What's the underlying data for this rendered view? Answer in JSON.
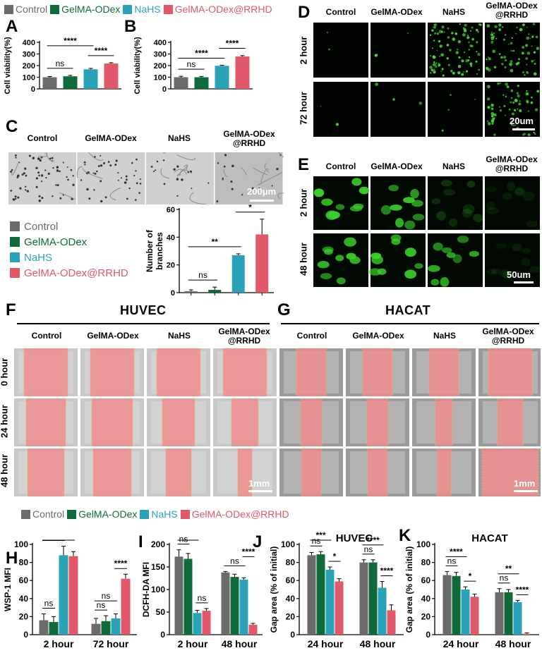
{
  "colors": {
    "control": "#6b6b6b",
    "gelma_odex": "#0f6b3a",
    "nahs": "#2aa3b8",
    "rrhd": "#e0586a"
  },
  "legend_top": [
    "Control",
    "GelMA-ODex",
    "NaHS",
    "GelMA-ODex@RRHD"
  ],
  "legend_mid": [
    "Control",
    "GelMA-ODex",
    "NaHS",
    "GelMA-ODex@RRHD"
  ],
  "legend_bottom": [
    "Control",
    "GelMA-ODex",
    "NaHS",
    "GelMA-ODex@RRHD"
  ],
  "panel_letters": {
    "A": "A",
    "B": "B",
    "C": "C",
    "D": "D",
    "E": "E",
    "F": "F",
    "G": "G",
    "H": "H",
    "I": "I",
    "J": "J",
    "K": "K"
  },
  "panel_c": {
    "headers": [
      "Control",
      "GelMA-ODex",
      "NaHS",
      "GelMA-ODex\n@RRHD"
    ],
    "scale": "200μm"
  },
  "panel_d": {
    "headers": [
      "Control",
      "GelMA-ODex",
      "NaHS",
      "GelMA-ODex\n@RRHD"
    ],
    "rows": [
      "2 hour",
      "72 hour"
    ],
    "scale": "20um"
  },
  "panel_e": {
    "headers": [
      "Control",
      "GelMA-ODex",
      "NaHS",
      "GelMA-ODex\n@RRHD"
    ],
    "rows": [
      "2 hour",
      "48 hour"
    ],
    "scale": "50um"
  },
  "panel_f": {
    "title": "HUVEC",
    "headers": [
      "Control",
      "GelMA-ODex",
      "NaHS",
      "GelMA-ODex\n@RRHD"
    ],
    "rows": [
      "0 hour",
      "24 hour",
      "48 hour"
    ],
    "scale": "1mm"
  },
  "panel_g": {
    "title": "HACAT",
    "headers": [
      "Control",
      "GelMA-ODex",
      "NaHS",
      "GelMA-ODex\n@RRHD"
    ],
    "scale": "1mm"
  },
  "chart_data": [
    {
      "id": "A",
      "type": "bar",
      "ylabel": "Cell viability(%)",
      "yticks": [
        0,
        100,
        200,
        300,
        400
      ],
      "ylim": [
        0,
        400
      ],
      "values": [
        100,
        108,
        168,
        218
      ],
      "errors": [
        6,
        8,
        8,
        7
      ],
      "sig": [
        {
          "a": 0,
          "b": 1,
          "label": "ns"
        },
        {
          "a": 2,
          "b": 3,
          "label": "****"
        },
        {
          "a": 0,
          "b": 2,
          "label": "****"
        }
      ]
    },
    {
      "id": "B",
      "type": "bar",
      "ylabel": "Cell viability(%)",
      "yticks": [
        0,
        100,
        200,
        300,
        400
      ],
      "ylim": [
        0,
        400
      ],
      "values": [
        100,
        100,
        198,
        278
      ],
      "errors": [
        8,
        7,
        5,
        8
      ],
      "sig": [
        {
          "a": 0,
          "b": 1,
          "label": "ns"
        },
        {
          "a": 0,
          "b": 2,
          "label": "****"
        },
        {
          "a": 2,
          "b": 3,
          "label": "****"
        }
      ]
    },
    {
      "id": "C",
      "type": "bar",
      "ylabel": "Number of branches",
      "yticks": [
        0,
        20,
        40,
        60
      ],
      "ylim": [
        0,
        60
      ],
      "values": [
        1,
        2,
        27,
        42
      ],
      "errors": [
        1,
        2,
        1,
        11
      ],
      "sig": [
        {
          "a": 0,
          "b": 1,
          "label": "ns"
        },
        {
          "a": 0,
          "b": 2,
          "label": "**"
        },
        {
          "a": 2,
          "b": 3,
          "label": "*"
        }
      ]
    },
    {
      "id": "H",
      "type": "bar",
      "ylabel": "WSP-1 MFI",
      "categories": [
        "2 hour",
        "72 hour"
      ],
      "yticks": [
        0,
        20,
        40,
        60,
        80,
        100
      ],
      "ylim": [
        0,
        100
      ],
      "series": [
        {
          "name": "Control",
          "values": [
            16,
            12
          ],
          "errors": [
            7,
            6
          ]
        },
        {
          "name": "GelMA-ODex",
          "values": [
            14,
            15
          ],
          "errors": [
            6,
            6
          ]
        },
        {
          "name": "NaHS",
          "values": [
            88,
            18
          ],
          "errors": [
            10,
            5
          ]
        },
        {
          "name": "GelMA-ODex@RRHD",
          "values": [
            87,
            62
          ],
          "errors": [
            5,
            5
          ]
        }
      ],
      "sig": [
        {
          "g": 0,
          "a": 0,
          "b": 1,
          "label": "ns"
        },
        {
          "g": 0,
          "a": 0,
          "b": 2,
          "label": "****"
        },
        {
          "g": 0,
          "a": 0,
          "b": 3,
          "label": "****"
        },
        {
          "g": 1,
          "a": 0,
          "b": 1,
          "label": "ns"
        },
        {
          "g": 1,
          "a": 0,
          "b": 2,
          "label": "ns"
        },
        {
          "g": 1,
          "a": 2,
          "b": 3,
          "label": "****"
        }
      ]
    },
    {
      "id": "I",
      "type": "bar",
      "ylabel": "DCFH-DA MFI",
      "categories": [
        "2 hour",
        "48 hour"
      ],
      "yticks": [
        0,
        50,
        100,
        150,
        200
      ],
      "ylim": [
        0,
        200
      ],
      "series": [
        {
          "name": "Control",
          "values": [
            173,
            138
          ],
          "errors": [
            15,
            2
          ]
        },
        {
          "name": "GelMA-ODex",
          "values": [
            168,
            128
          ],
          "errors": [
            12,
            6
          ]
        },
        {
          "name": "NaHS",
          "values": [
            48,
            122
          ],
          "errors": [
            6,
            4
          ]
        },
        {
          "name": "GelMA-ODex@RRHD",
          "values": [
            53,
            22
          ],
          "errors": [
            5,
            3
          ]
        }
      ],
      "sig": [
        {
          "g": 0,
          "a": 0,
          "b": 1,
          "label": "ns"
        },
        {
          "g": 0,
          "a": 0,
          "b": 2,
          "label": "****"
        },
        {
          "g": 0,
          "a": 2,
          "b": 3,
          "label": "ns"
        },
        {
          "g": 1,
          "a": 0,
          "b": 2,
          "label": "ns"
        },
        {
          "g": 1,
          "a": 2,
          "b": 3,
          "label": "****"
        }
      ]
    },
    {
      "id": "J",
      "type": "bar",
      "title": "HUVEC",
      "ylabel": "Gap area (% of initial)",
      "categories": [
        "24 hour",
        "48 hour"
      ],
      "yticks": [
        0,
        20,
        40,
        60,
        80,
        100
      ],
      "ylim": [
        0,
        100
      ],
      "series": [
        {
          "name": "Control",
          "values": [
            88,
            80
          ],
          "errors": [
            3,
            3
          ]
        },
        {
          "name": "GelMA-ODex",
          "values": [
            89,
            80
          ],
          "errors": [
            3,
            3
          ]
        },
        {
          "name": "NaHS",
          "values": [
            72,
            52
          ],
          "errors": [
            3,
            7
          ]
        },
        {
          "name": "GelMA-ODex@RRHD",
          "values": [
            59,
            27
          ],
          "errors": [
            3,
            6
          ]
        }
      ],
      "sig": [
        {
          "g": 0,
          "a": 0,
          "b": 1,
          "label": "ns"
        },
        {
          "g": 0,
          "a": 0,
          "b": 2,
          "label": "***"
        },
        {
          "g": 0,
          "a": 2,
          "b": 3,
          "label": "*"
        },
        {
          "g": 1,
          "a": 0,
          "b": 1,
          "label": "ns"
        },
        {
          "g": 1,
          "a": 0,
          "b": 2,
          "label": "****"
        },
        {
          "g": 1,
          "a": 2,
          "b": 3,
          "label": "****"
        }
      ]
    },
    {
      "id": "K",
      "type": "bar",
      "title": "HACAT",
      "ylabel": "Gap area (% of initial)",
      "categories": [
        "24 hour",
        "48 hour"
      ],
      "yticks": [
        0,
        20,
        40,
        60,
        80,
        100
      ],
      "ylim": [
        0,
        100
      ],
      "series": [
        {
          "name": "Control",
          "values": [
            66,
            47
          ],
          "errors": [
            4,
            4
          ]
        },
        {
          "name": "GelMA-ODex",
          "values": [
            65,
            47
          ],
          "errors": [
            4,
            3
          ]
        },
        {
          "name": "NaHS",
          "values": [
            50,
            36
          ],
          "errors": [
            3,
            2
          ]
        },
        {
          "name": "GelMA-ODex@RRHD",
          "values": [
            42,
            1
          ],
          "errors": [
            3,
            1
          ]
        }
      ],
      "sig": [
        {
          "g": 0,
          "a": 0,
          "b": 1,
          "label": "ns"
        },
        {
          "g": 0,
          "a": 0,
          "b": 2,
          "label": "****"
        },
        {
          "g": 0,
          "a": 2,
          "b": 3,
          "label": "*"
        },
        {
          "g": 1,
          "a": 0,
          "b": 1,
          "label": "ns"
        },
        {
          "g": 1,
          "a": 0,
          "b": 2,
          "label": "**"
        },
        {
          "g": 1,
          "a": 2,
          "b": 3,
          "label": "****"
        }
      ]
    }
  ]
}
